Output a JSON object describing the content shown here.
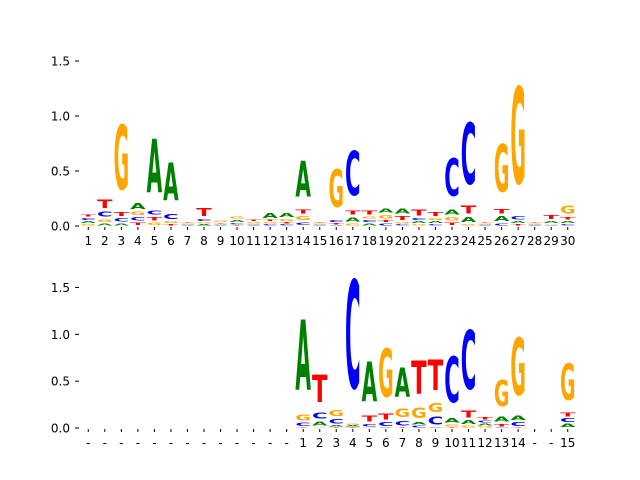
{
  "colors": {
    "A": "#008000",
    "C": "#0000ff",
    "G": "#ffa500",
    "T": "#ff0000"
  },
  "chart_data": [
    {
      "type": "sequence-logo",
      "ylim": [
        0,
        1.6
      ],
      "yticks": [
        "0.0",
        "0.5",
        "1.0",
        "1.5"
      ],
      "xtick_labels": [
        "1",
        "2",
        "3",
        "4",
        "5",
        "6",
        "7",
        "8",
        "9",
        "10",
        "11",
        "12",
        "13",
        "14",
        "15",
        "16",
        "17",
        "18",
        "19",
        "20",
        "21",
        "22",
        "23",
        "24",
        "25",
        "26",
        "27",
        "28",
        "29",
        "30"
      ],
      "columns": [
        {
          "A": 0.03,
          "C": 0.03,
          "G": 0.02,
          "T": 0.03
        },
        {
          "A": 0.03,
          "C": 0.07,
          "G": 0.04,
          "T": 0.12
        },
        {
          "A": 0.03,
          "C": 0.05,
          "G": 0.94,
          "T": 0.06
        },
        {
          "A": 0.08,
          "C": 0.05,
          "G": 0.05,
          "T": 0.04
        },
        {
          "A": 0.78,
          "C": 0.06,
          "G": 0.04,
          "T": 0.05
        },
        {
          "A": 0.55,
          "C": 0.07,
          "G": 0.03,
          "T": 0.02
        },
        {
          "A": 0.01,
          "C": 0.01,
          "G": 0.01,
          "T": 0.01
        },
        {
          "A": 0.02,
          "C": 0.03,
          "G": 0.02,
          "T": 0.11
        },
        {
          "A": 0.01,
          "C": 0.01,
          "G": 0.02,
          "T": 0.01
        },
        {
          "A": 0.03,
          "C": 0.02,
          "G": 0.03,
          "T": 0.01
        },
        {
          "A": 0.01,
          "C": 0.01,
          "G": 0.02,
          "T": 0.02
        },
        {
          "A": 0.07,
          "C": 0.02,
          "G": 0.02,
          "T": 0.02
        },
        {
          "A": 0.06,
          "C": 0.02,
          "G": 0.03,
          "T": 0.02
        },
        {
          "A": 0.52,
          "C": 0.04,
          "G": 0.06,
          "T": 0.06
        },
        {
          "A": 0.01,
          "C": 0.01,
          "G": 0.01,
          "T": 0.01
        },
        {
          "A": 0.01,
          "C": 0.03,
          "G": 0.55,
          "T": 0.02
        },
        {
          "A": 0.06,
          "C": 0.64,
          "G": 0.03,
          "T": 0.06
        },
        {
          "A": 0.03,
          "C": 0.03,
          "G": 0.03,
          "T": 0.06
        },
        {
          "A": 0.06,
          "C": 0.03,
          "G": 0.05,
          "T": 0.03
        },
        {
          "A": 0.07,
          "C": 0.02,
          "G": 0.02,
          "T": 0.06
        },
        {
          "A": 0.03,
          "C": 0.03,
          "G": 0.02,
          "T": 0.08
        },
        {
          "A": 0.03,
          "C": 0.02,
          "G": 0.03,
          "T": 0.06
        },
        {
          "A": 0.07,
          "C": 0.55,
          "G": 0.05,
          "T": 0.04
        },
        {
          "A": 0.07,
          "C": 0.89,
          "G": 0.02,
          "T": 0.11
        },
        {
          "A": 0.01,
          "C": 0.01,
          "G": 0.01,
          "T": 0.01
        },
        {
          "A": 0.07,
          "C": 0.03,
          "G": 0.69,
          "T": 0.07
        },
        {
          "A": 0.03,
          "C": 0.05,
          "G": 1.41,
          "T": 0.02
        },
        {
          "A": 0.01,
          "C": 0.01,
          "G": 0.01,
          "T": 0.01
        },
        {
          "A": 0.03,
          "C": 0.01,
          "G": 0.01,
          "T": 0.06
        },
        {
          "A": 0.03,
          "C": 0.02,
          "G": 0.11,
          "T": 0.04
        }
      ]
    },
    {
      "type": "sequence-logo",
      "ylim": [
        0,
        1.9
      ],
      "yticks": [
        "0.0",
        "0.5",
        "1.0",
        "1.5"
      ],
      "xtick_labels": [
        "-",
        "-",
        "-",
        "-",
        "-",
        "-",
        "-",
        "-",
        "-",
        "-",
        "-",
        "-",
        "-",
        "1",
        "2",
        "3",
        "4",
        "5",
        "6",
        "7",
        "8",
        "9",
        "10",
        "11",
        "12",
        "13",
        "14",
        "-",
        "-",
        "15"
      ],
      "columns": [
        null,
        null,
        null,
        null,
        null,
        null,
        null,
        null,
        null,
        null,
        null,
        null,
        null,
        {
          "A": 1.2,
          "C": 0.05,
          "G": 0.1,
          "T": 0.01
        },
        {
          "A": 0.07,
          "C": 0.1,
          "G": 0.01,
          "T": 0.47
        },
        {
          "A": 0.02,
          "C": 0.08,
          "G": 0.1,
          "T": 0.01
        },
        {
          "A": 0.02,
          "C": 1.85,
          "G": 0.02,
          "T": 0.01
        },
        {
          "A": 0.68,
          "C": 0.04,
          "G": 0.01,
          "T": 0.1
        },
        {
          "A": 0.01,
          "C": 0.06,
          "G": 0.82,
          "T": 0.1
        },
        {
          "A": 0.5,
          "C": 0.08,
          "G": 0.14,
          "T": 0.01
        },
        {
          "A": 0.04,
          "C": 0.03,
          "G": 0.18,
          "T": 0.57
        },
        {
          "A": 0.01,
          "C": 0.13,
          "G": 0.16,
          "T": 0.52
        },
        {
          "A": 0.08,
          "C": 0.78,
          "G": 0.03,
          "T": 0.01
        },
        {
          "A": 0.06,
          "C": 1.0,
          "G": 0.03,
          "T": 0.12
        },
        {
          "A": 0.03,
          "C": 0.03,
          "G": 0.02,
          "T": 0.04
        },
        {
          "A": 0.09,
          "C": 0.01,
          "G": 0.45,
          "T": 0.04
        },
        {
          "A": 0.08,
          "C": 0.06,
          "G": 0.98,
          "T": 0.01
        },
        null,
        null,
        {
          "A": 0.05,
          "C": 0.06,
          "G": 0.62,
          "T": 0.06
        }
      ]
    }
  ]
}
